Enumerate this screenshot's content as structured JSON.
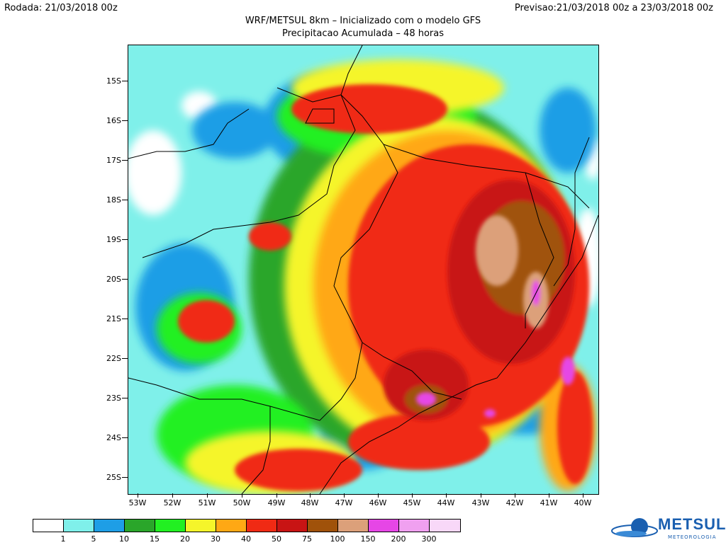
{
  "header": {
    "rodada": "Rodada: 21/03/2018 00z",
    "previsao": "Previsao:21/03/2018 00z a 23/03/2018 00z",
    "title": "WRF/METSUL 8km – Inicializado com o modelo GFS",
    "subtitle": "Precipitacao Acumulada – 48 horas"
  },
  "axes": {
    "lat_labels": [
      "15S",
      "16S",
      "17S",
      "18S",
      "19S",
      "20S",
      "21S",
      "22S",
      "23S",
      "24S",
      "25S"
    ],
    "lon_labels": [
      "53W",
      "52W",
      "51W",
      "50W",
      "49W",
      "48W",
      "47W",
      "46W",
      "45W",
      "44W",
      "43W",
      "42W",
      "41W",
      "40W"
    ]
  },
  "legend": {
    "labels": [
      "1",
      "5",
      "10",
      "15",
      "20",
      "30",
      "40",
      "50",
      "75",
      "100",
      "150",
      "200",
      "300"
    ],
    "colors": [
      "#ffffff",
      "#7ff0ea",
      "#1e9ee6",
      "#2aa62a",
      "#22f022",
      "#f5f52a",
      "#ffa814",
      "#f02a14",
      "#c81414",
      "#a0520a",
      "#dca07a",
      "#e646e6",
      "#f0a0f0",
      "#f8d8f8"
    ]
  },
  "brand": {
    "name": "METSUL",
    "tagline": "METEOROLOGIA",
    "color": "#1a5fb0"
  }
}
